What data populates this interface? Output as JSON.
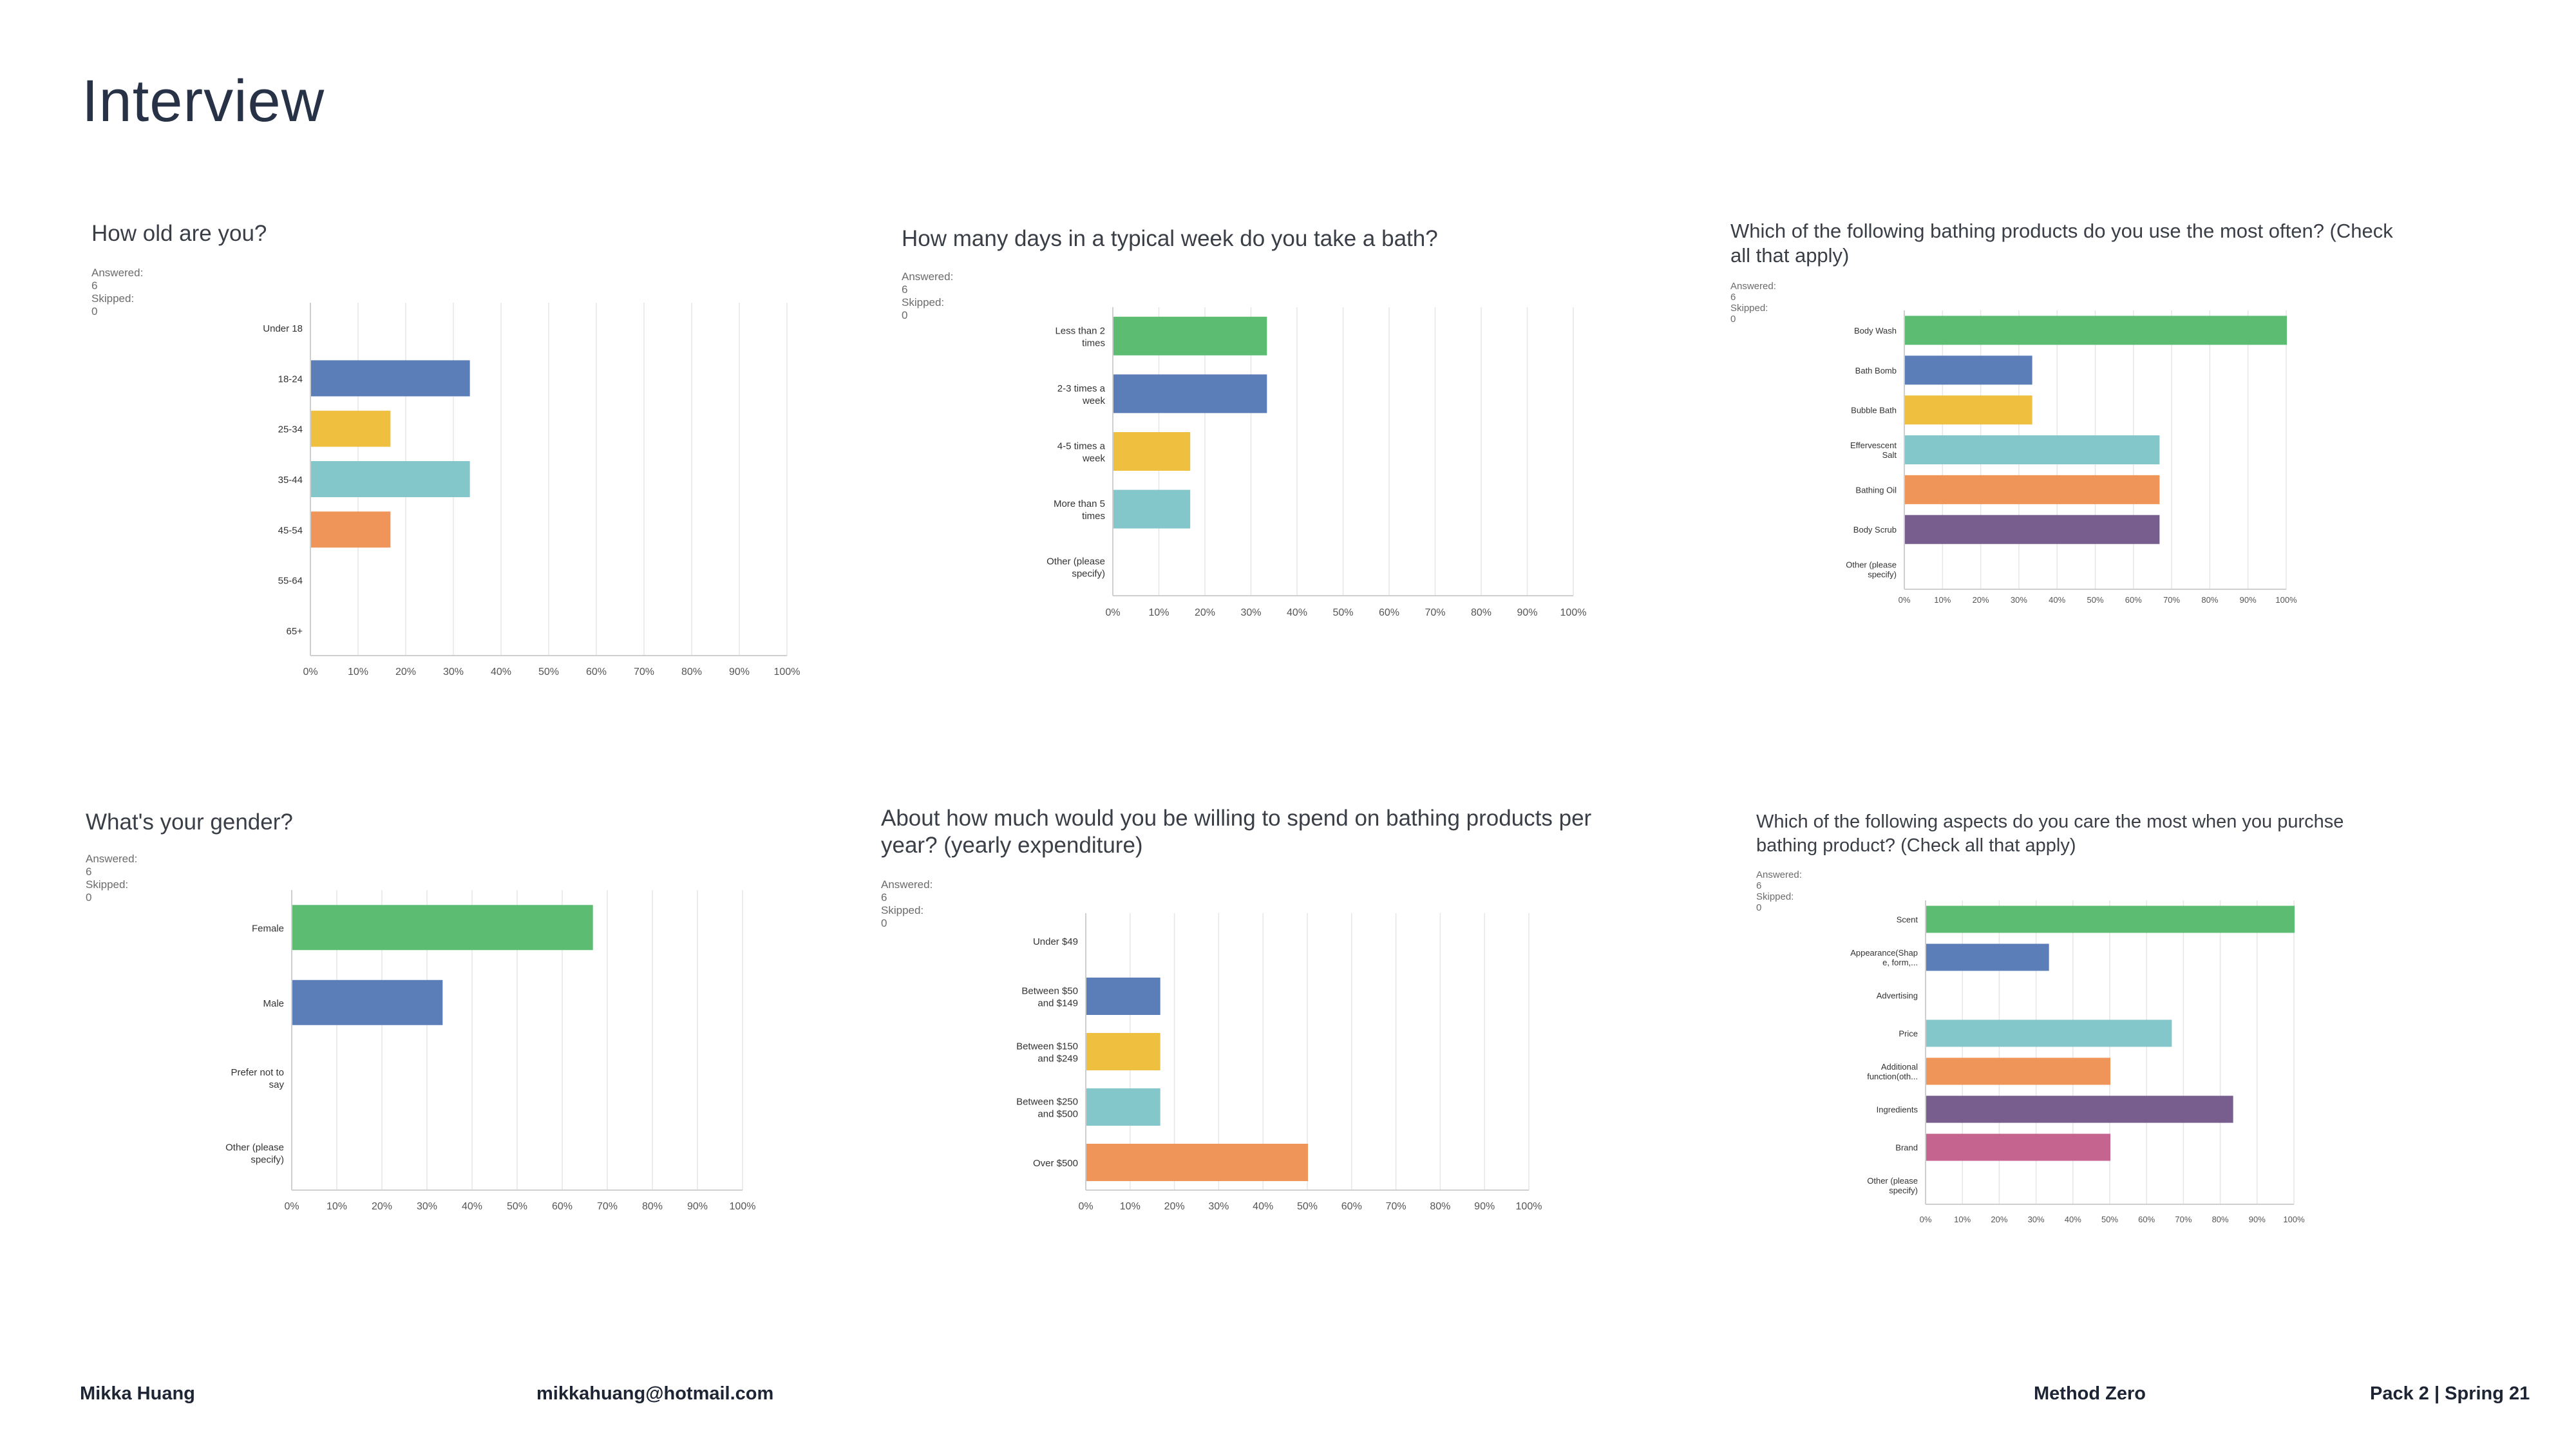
{
  "page": {
    "title": "Interview"
  },
  "footer": {
    "name": "Mikka Huang",
    "email": "mikkahuang@hotmail.com",
    "project": "Method Zero",
    "pack": "Pack 2 | Spring 21"
  },
  "colors": [
    "#5cbd72",
    "#5b7db8",
    "#efbf3f",
    "#84c7cb",
    "#ef9559",
    "#775e8f",
    "#c5648e"
  ],
  "xticks": [
    "0%",
    "10%",
    "20%",
    "30%",
    "40%",
    "50%",
    "60%",
    "70%",
    "80%",
    "90%",
    "100%"
  ],
  "chart_data": [
    {
      "type": "bar",
      "title": "How old are you?",
      "answered": "Answered: 6",
      "skipped": "Skipped: 0",
      "categories": [
        [
          "Under 18"
        ],
        [
          "18-24"
        ],
        [
          "25-34"
        ],
        [
          "35-44"
        ],
        [
          "45-54"
        ],
        [
          "55-64"
        ],
        [
          "65+"
        ]
      ],
      "values": [
        0,
        33.33,
        16.67,
        33.33,
        16.67,
        0,
        0
      ],
      "xlim": [
        0,
        100
      ],
      "grid": true
    },
    {
      "type": "bar",
      "title": "How many days in a typical week do you take a bath?",
      "answered": "Answered: 6",
      "skipped": "Skipped: 0",
      "categories": [
        [
          "Less than 2",
          "times"
        ],
        [
          "2-3 times a",
          "week"
        ],
        [
          "4-5 times a",
          "week"
        ],
        [
          "More than 5",
          "times"
        ],
        [
          "Other (please",
          "specify)"
        ]
      ],
      "values": [
        33.33,
        33.33,
        16.67,
        16.67,
        0
      ],
      "xlim": [
        0,
        100
      ],
      "grid": true
    },
    {
      "type": "bar",
      "title": "Which of the following bathing products do you use the most often? (Check all that apply)",
      "answered": "Answered: 6",
      "skipped": "Skipped: 0",
      "categories": [
        [
          "Body Wash"
        ],
        [
          "Bath Bomb"
        ],
        [
          "Bubble Bath"
        ],
        [
          "Effervescent",
          "Salt"
        ],
        [
          "Bathing Oil"
        ],
        [
          "Body Scrub"
        ],
        [
          "Other (please",
          "specify)"
        ]
      ],
      "values": [
        100,
        33.33,
        33.33,
        66.67,
        66.67,
        66.67,
        0
      ],
      "xlim": [
        0,
        100
      ],
      "grid": true
    },
    {
      "type": "bar",
      "title": "What's your gender?",
      "answered": "Answered: 6",
      "skipped": "Skipped: 0",
      "categories": [
        [
          "Female"
        ],
        [
          "Male"
        ],
        [
          "Prefer not to",
          "say"
        ],
        [
          "Other (please",
          "specify)"
        ]
      ],
      "values": [
        66.67,
        33.33,
        0,
        0
      ],
      "xlim": [
        0,
        100
      ],
      "grid": true
    },
    {
      "type": "bar",
      "title": "About how much would you be willing to spend on bathing products per year? (yearly expenditure)",
      "answered": "Answered: 6",
      "skipped": "Skipped: 0",
      "categories": [
        [
          "Under $49"
        ],
        [
          "Between $50",
          "and $149"
        ],
        [
          "Between $150",
          "and $249"
        ],
        [
          "Between $250",
          "and $500"
        ],
        [
          "Over $500"
        ]
      ],
      "values": [
        0,
        16.67,
        16.67,
        16.67,
        50
      ],
      "xlim": [
        0,
        100
      ],
      "grid": true
    },
    {
      "type": "bar",
      "title": "Which of the following aspects do you care the most when you purchse bathing product? (Check all that apply)",
      "answered": "Answered: 6",
      "skipped": "Skipped: 0",
      "categories": [
        [
          "Scent"
        ],
        [
          "Appearance(Shap",
          "e, form,..."
        ],
        [
          "Advertising"
        ],
        [
          "Price"
        ],
        [
          "Additional",
          "function(oth..."
        ],
        [
          "Ingredients"
        ],
        [
          "Brand"
        ],
        [
          "Other (please",
          "specify)"
        ]
      ],
      "values": [
        100,
        33.33,
        0,
        66.67,
        50,
        83.33,
        50,
        0
      ],
      "xlim": [
        0,
        100
      ],
      "grid": true
    }
  ]
}
